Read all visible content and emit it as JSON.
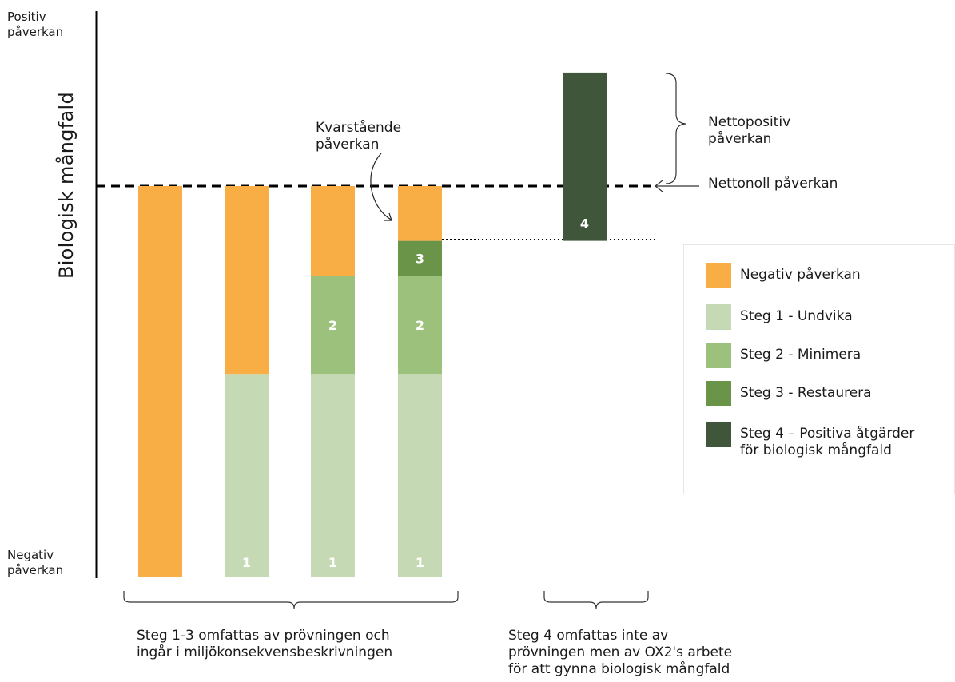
{
  "axis": {
    "y_label": "Biologisk mångfald",
    "top_label": "Positiv\npåverkan",
    "bottom_label": "Negativ\npåverkan"
  },
  "annotations": {
    "remaining": "Kvarstående\npåverkan",
    "net_positive": "Nettopositiv\npåverkan",
    "net_zero": "Nettonoll påverkan"
  },
  "colors": {
    "negative": "#F9AD45",
    "step1": "#C5DAB4",
    "step2": "#9CC17C",
    "step3": "#6A9549",
    "step4": "#3F563A"
  },
  "columns": [
    {
      "segments": [
        {
          "type": "negative",
          "from": -1.0,
          "to": 0.0,
          "label": ""
        }
      ]
    },
    {
      "segments": [
        {
          "type": "step1",
          "from": -1.0,
          "to": -0.48,
          "label": "1"
        },
        {
          "type": "negative",
          "from": -0.48,
          "to": 0.0,
          "label": ""
        }
      ]
    },
    {
      "segments": [
        {
          "type": "step1",
          "from": -1.0,
          "to": -0.48,
          "label": "1"
        },
        {
          "type": "step2",
          "from": -0.48,
          "to": -0.23,
          "label": "2"
        },
        {
          "type": "negative",
          "from": -0.23,
          "to": 0.0,
          "label": ""
        }
      ]
    },
    {
      "segments": [
        {
          "type": "step1",
          "from": -1.0,
          "to": -0.48,
          "label": "1"
        },
        {
          "type": "step2",
          "from": -0.48,
          "to": -0.23,
          "label": "2"
        },
        {
          "type": "step3",
          "from": -0.23,
          "to": -0.14,
          "label": "3"
        },
        {
          "type": "negative",
          "from": -0.14,
          "to": 0.0,
          "label": ""
        }
      ]
    },
    {
      "segments": [
        {
          "type": "step4",
          "from": -0.14,
          "to": 0.29,
          "label": "4"
        }
      ]
    }
  ],
  "legend": [
    {
      "type": "negative",
      "label": "Negativ påverkan"
    },
    {
      "type": "step1",
      "label": "Steg 1 - Undvika"
    },
    {
      "type": "step2",
      "label": "Steg 2 - Minimera"
    },
    {
      "type": "step3",
      "label": "Steg 3 - Restaurera"
    },
    {
      "type": "step4",
      "label": "Steg 4 – Positiva åtgärder\nför biologisk mångfald"
    }
  ],
  "footnotes": {
    "steps_1_3": "Steg 1-3 omfattas av prövningen och\ningår i miljökonsekvensbeskrivningen",
    "step_4": "Steg 4 omfattas inte av\nprövningen men av OX2's arbete\nför att gynna biologisk mångfald"
  }
}
